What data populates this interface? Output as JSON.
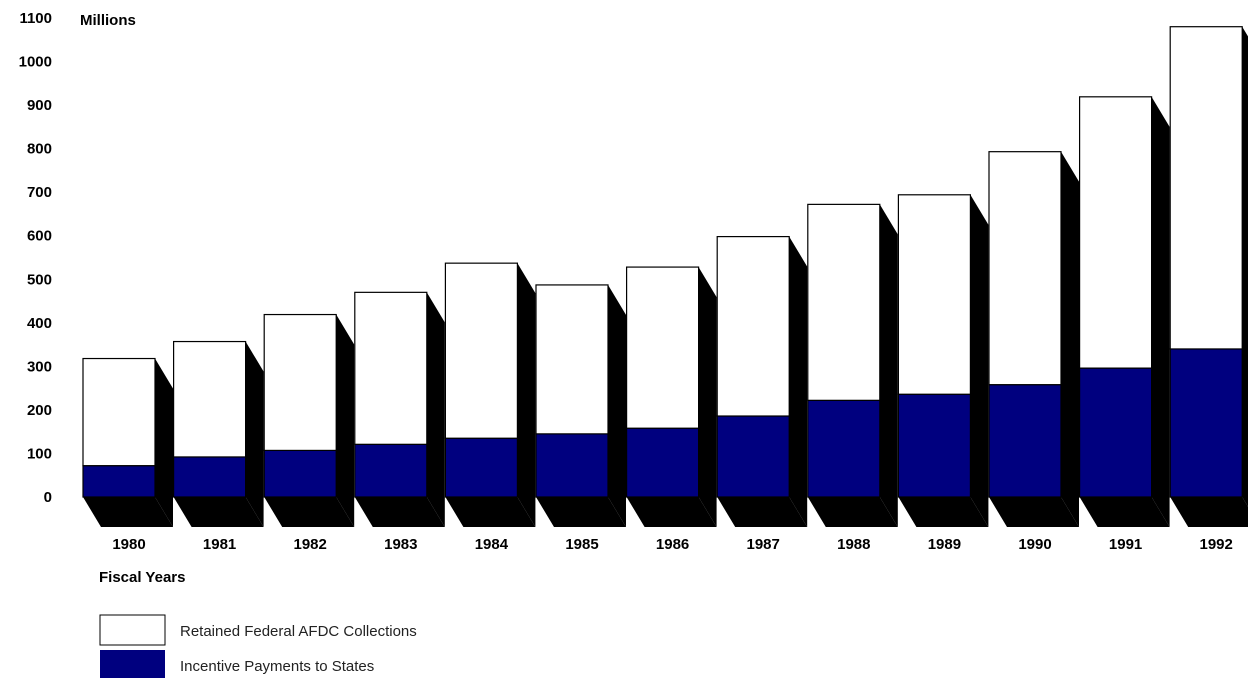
{
  "chart_data": {
    "type": "bar",
    "stacked": true,
    "style": "3d",
    "categories": [
      "1980",
      "1981",
      "1982",
      "1983",
      "1984",
      "1985",
      "1986",
      "1987",
      "1988",
      "1989",
      "1990",
      "1991",
      "1992"
    ],
    "series": [
      {
        "name": "Incentive Payments to States",
        "color": "#00007f",
        "values": [
          72,
          92,
          107,
          121,
          135,
          145,
          158,
          186,
          222,
          236,
          258,
          296,
          340
        ]
      },
      {
        "name": "Retained Federal AFDC Collections",
        "color": "#ffffff",
        "values": [
          246,
          265,
          312,
          349,
          402,
          342,
          370,
          412,
          450,
          458,
          535,
          623,
          740
        ]
      }
    ],
    "totals": [
      318,
      357,
      419,
      470,
      537,
      487,
      528,
      598,
      672,
      694,
      793,
      919,
      1080
    ],
    "ylabel": "Millions",
    "xlabel": "Fiscal Years",
    "ylim": [
      0,
      1100
    ],
    "yticks": [
      0,
      100,
      200,
      300,
      400,
      500,
      600,
      700,
      800,
      900,
      1000,
      1100
    ],
    "grid": false,
    "legend_position": "bottom-left"
  }
}
